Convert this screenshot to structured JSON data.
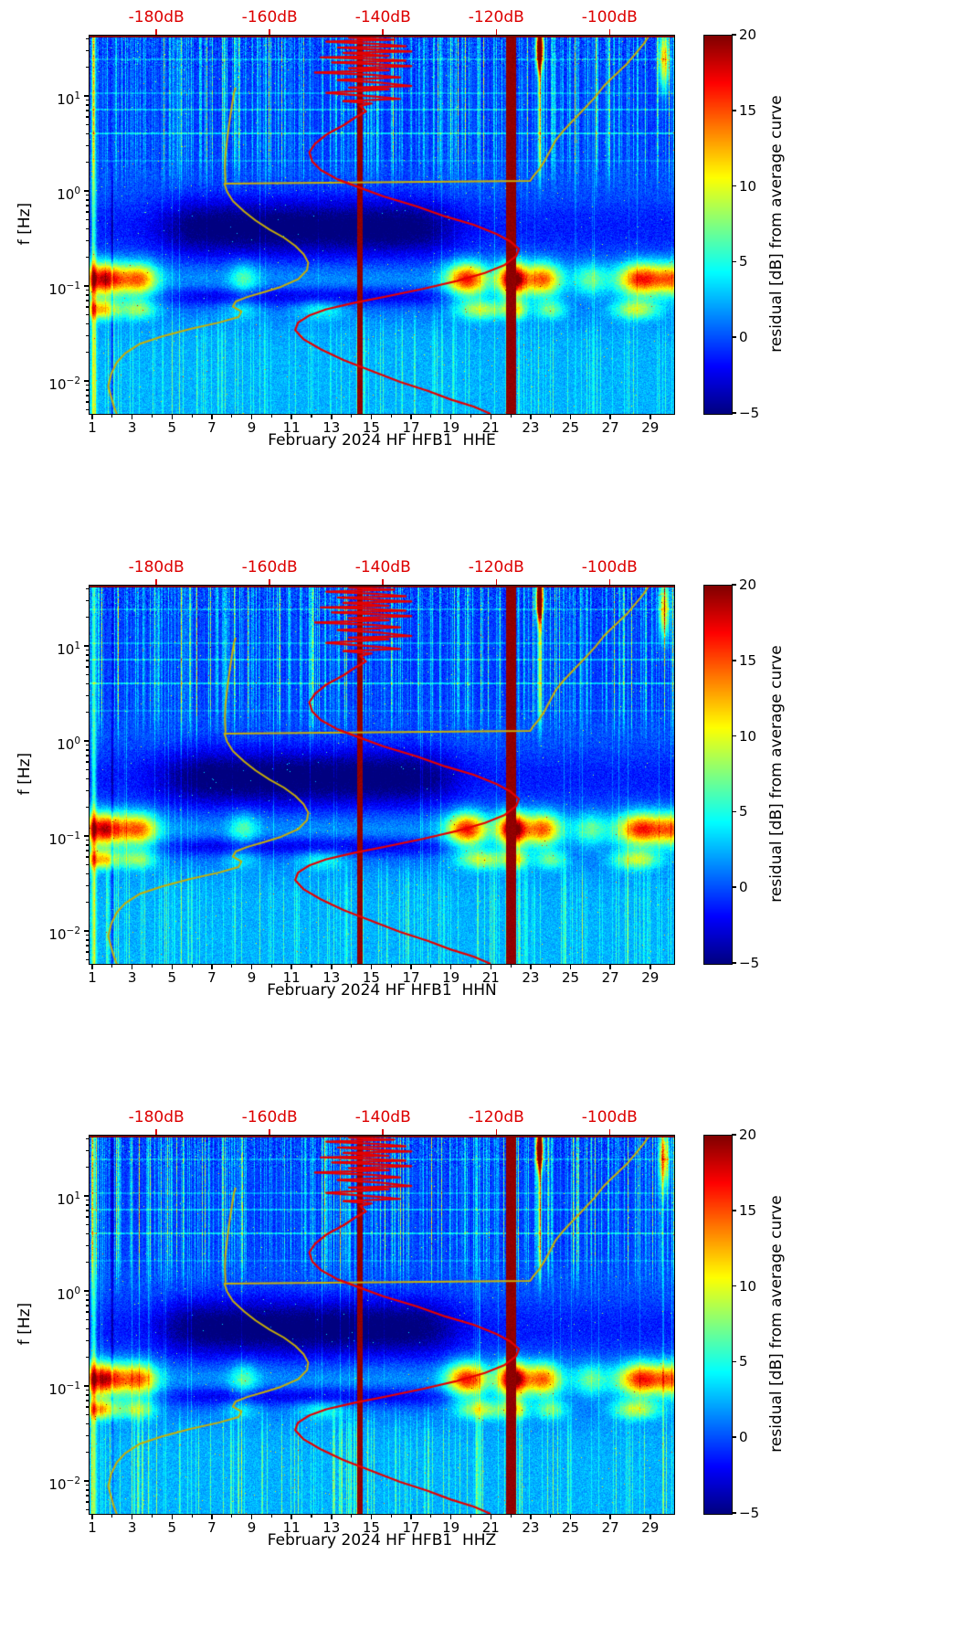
{
  "colors": {
    "curve_red": "#e60000",
    "curve_yellow": "#c6ad09",
    "top_axis_red": "#dd0000",
    "spine_top": "#7a0000",
    "tick_black": "#000000"
  },
  "chart_data": {
    "type": "heatmap",
    "panels": [
      {
        "xlabel": "February 2024 HF HFB1  HHE"
      },
      {
        "xlabel": "February 2024 HF HFB1  HHN"
      },
      {
        "xlabel": "February 2024 HF HFB1  HHZ"
      }
    ],
    "x_axis": {
      "tick_labels": [
        "1",
        "3",
        "5",
        "7",
        "9",
        "11",
        "13",
        "15",
        "17",
        "19",
        "21",
        "23",
        "25",
        "27",
        "29"
      ],
      "tick_values": [
        1,
        3,
        5,
        7,
        9,
        11,
        13,
        15,
        17,
        19,
        21,
        23,
        25,
        27,
        29
      ],
      "minor_tick_values": [
        2,
        4,
        6,
        8,
        10,
        12,
        14,
        16,
        18,
        20,
        22,
        24,
        26,
        28,
        30
      ],
      "range": [
        0.86,
        30.2
      ]
    },
    "y_axis": {
      "label": "f [Hz]",
      "ticks": [
        {
          "base": "10",
          "exp": "1",
          "value": 10
        },
        {
          "base": "10",
          "exp": "0",
          "value": 1
        },
        {
          "base": "10",
          "exp": "−1",
          "value": 0.1
        },
        {
          "base": "10",
          "exp": "−2",
          "value": 0.01
        }
      ],
      "range": [
        0.0046,
        44
      ]
    },
    "top_axis_db": {
      "ticks": [
        {
          "label": "-180dB",
          "value": -180
        },
        {
          "label": "-160dB",
          "value": -160
        },
        {
          "label": "-140dB",
          "value": -140
        },
        {
          "label": "-120dB",
          "value": -120
        },
        {
          "label": "-100dB",
          "value": -100
        }
      ],
      "range": [
        -191.8,
        -88.6
      ]
    },
    "colorbar": {
      "label": "residual [dB] from average curve",
      "colormap": "jet",
      "range": [
        -5,
        20
      ],
      "ticks": [
        {
          "label": "20",
          "value": 20
        },
        {
          "label": "15",
          "value": 15
        },
        {
          "label": "10",
          "value": 10
        },
        {
          "label": "5",
          "value": 5
        },
        {
          "label": "0",
          "value": 0
        },
        {
          "label": "−5",
          "value": -5
        }
      ]
    },
    "overlay_curves": {
      "red_avg_db": [
        [
          44,
          -140
        ],
        [
          42,
          -146
        ],
        [
          40,
          -138
        ],
        [
          38,
          -150
        ],
        [
          36,
          -141
        ],
        [
          34,
          -136
        ],
        [
          33,
          -148
        ],
        [
          31,
          -140
        ],
        [
          30,
          -135
        ],
        [
          29,
          -147
        ],
        [
          27,
          -139
        ],
        [
          26,
          -151
        ],
        [
          25,
          -142
        ],
        [
          24,
          -136
        ],
        [
          23,
          -149
        ],
        [
          22,
          -141
        ],
        [
          21,
          -135
        ],
        [
          20,
          -146
        ],
        [
          19,
          -139
        ],
        [
          18,
          -152
        ],
        [
          17,
          -142
        ],
        [
          16,
          -137
        ],
        [
          15,
          -148
        ],
        [
          14,
          -140
        ],
        [
          13,
          -135
        ],
        [
          12.5,
          -146
        ],
        [
          12,
          -139
        ],
        [
          11,
          -150
        ],
        [
          10,
          -141
        ],
        [
          9.5,
          -137
        ],
        [
          9,
          -147
        ],
        [
          8.5,
          -142
        ],
        [
          8,
          -144
        ],
        [
          7,
          -143
        ],
        [
          6,
          -145
        ],
        [
          5,
          -147
        ],
        [
          4,
          -150
        ],
        [
          3.2,
          -152
        ],
        [
          2.6,
          -153
        ],
        [
          2.1,
          -152.5
        ],
        [
          1.7,
          -151
        ],
        [
          1.35,
          -148
        ],
        [
          1.1,
          -144
        ],
        [
          0.9,
          -140
        ],
        [
          0.7,
          -134
        ],
        [
          0.55,
          -129
        ],
        [
          0.45,
          -124
        ],
        [
          0.36,
          -120
        ],
        [
          0.3,
          -117.5
        ],
        [
          0.25,
          -116
        ],
        [
          0.21,
          -116.5
        ],
        [
          0.17,
          -118.5
        ],
        [
          0.14,
          -122
        ],
        [
          0.115,
          -127
        ],
        [
          0.095,
          -133
        ],
        [
          0.08,
          -139
        ],
        [
          0.068,
          -145
        ],
        [
          0.058,
          -150
        ],
        [
          0.05,
          -153
        ],
        [
          0.042,
          -155
        ],
        [
          0.035,
          -155.5
        ],
        [
          0.028,
          -154
        ],
        [
          0.022,
          -151
        ],
        [
          0.017,
          -147
        ],
        [
          0.013,
          -142
        ],
        [
          0.01,
          -137
        ],
        [
          0.008,
          -132
        ],
        [
          0.0065,
          -128
        ],
        [
          0.0055,
          -124
        ],
        [
          0.0046,
          -121
        ]
      ],
      "yellow_ref_db": [
        [
          44,
          -93
        ],
        [
          36,
          -94
        ],
        [
          28,
          -95.5
        ],
        [
          22,
          -97
        ],
        [
          17,
          -99
        ],
        [
          13,
          -101
        ],
        [
          10,
          -102.5
        ],
        [
          8,
          -104
        ],
        [
          6,
          -106
        ],
        [
          4.5,
          -108
        ],
        [
          3.5,
          -109.5
        ],
        [
          2.7,
          -110.5
        ],
        [
          2.1,
          -111.5
        ],
        [
          1.7,
          -112.5
        ],
        [
          1.45,
          -113.5
        ],
        [
          1.3,
          -114
        ],
        [
          1.22,
          -168
        ],
        [
          1,
          -167.5
        ],
        [
          0.8,
          -166.5
        ],
        [
          0.62,
          -164.5
        ],
        [
          0.5,
          -162.5
        ],
        [
          0.4,
          -160
        ],
        [
          0.33,
          -157.5
        ],
        [
          0.27,
          -155.5
        ],
        [
          0.22,
          -154
        ],
        [
          0.18,
          -153.2
        ],
        [
          0.15,
          -153.4
        ],
        [
          0.12,
          -155
        ],
        [
          0.1,
          -158
        ],
        [
          0.088,
          -161
        ],
        [
          0.078,
          -164
        ],
        [
          0.07,
          -166
        ],
        [
          0.062,
          -166.5
        ],
        [
          0.055,
          -165
        ],
        [
          0.048,
          -165.5
        ],
        [
          0.042,
          -169
        ],
        [
          0.036,
          -174
        ],
        [
          0.03,
          -179
        ],
        [
          0.025,
          -183
        ],
        [
          0.02,
          -185.5
        ],
        [
          0.016,
          -187
        ],
        [
          0.012,
          -188
        ],
        [
          0.009,
          -188.5
        ],
        [
          0.007,
          -188
        ],
        [
          0.0055,
          -187.5
        ],
        [
          0.0046,
          -187
        ]
      ],
      "yellow_ref_branch_db": [
        [
          1.25,
          -167.8
        ],
        [
          1.8,
          -167.9
        ],
        [
          2.5,
          -167.8
        ],
        [
          4,
          -167.4
        ],
        [
          6,
          -167
        ],
        [
          8.5,
          -166.6
        ],
        [
          11,
          -166.3
        ],
        [
          12.5,
          -166
        ]
      ]
    },
    "heatmap_model": {
      "hot_column_days": [
        [
          14.28,
          14.58
        ],
        [
          21.75,
          22.28
        ]
      ],
      "hot_value": 20,
      "hot_blob": {
        "day": 23.45,
        "log10_f": 1.5,
        "value": 20
      },
      "microseism_primary": [
        [
          17,
          1.6,
          1.1
        ],
        [
          12,
          3.4,
          0.9
        ],
        [
          5,
          8.6,
          0.7
        ],
        [
          15,
          19.8,
          1.0
        ],
        [
          20,
          22.1,
          0.7
        ],
        [
          13,
          23.6,
          0.9
        ],
        [
          5,
          26.0,
          0.8
        ],
        [
          15,
          28.6,
          1.2
        ],
        [
          10,
          30.2,
          0.8
        ]
      ],
      "microseism_secondary": [
        [
          11,
          1.4,
          0.9
        ],
        [
          7,
          3.3,
          0.9
        ],
        [
          3,
          8.5,
          0.9
        ],
        [
          4,
          12.5,
          1.2
        ],
        [
          8,
          20.5,
          1.2
        ],
        [
          9,
          22.2,
          0.6
        ],
        [
          6,
          24.0,
          0.8
        ],
        [
          8,
          28.3,
          1.2
        ]
      ],
      "quiet_period_days": [
        4.8,
        18.8
      ],
      "h_lines": [
        [
          25,
          2.5
        ],
        [
          11,
          2.5
        ],
        [
          7.3,
          3.5
        ],
        [
          4.15,
          4.5
        ],
        [
          2.1,
          2.0
        ]
      ]
    }
  }
}
